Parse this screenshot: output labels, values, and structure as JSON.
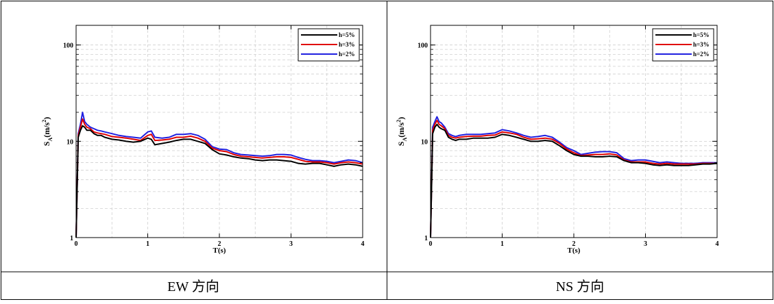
{
  "chart_data": [
    {
      "type": "line",
      "caption": "EW 方向",
      "xlabel": "T(s)",
      "ylabel": "S_A(m/s^2)",
      "ylabel_main": "S",
      "ylabel_sub": "A",
      "ylabel_unit": "(m/s",
      "ylabel_sup": "2",
      "ylabel_close": ")",
      "xlim": [
        0,
        4
      ],
      "ylim": [
        1,
        160
      ],
      "yscale": "log",
      "grid": true,
      "legend_position": "top-right",
      "x_ticks": [
        0,
        1,
        2,
        3,
        4
      ],
      "x_tick_labels": [
        "0",
        "1",
        "2",
        "3",
        "4"
      ],
      "y_ticks": [
        1,
        10,
        100
      ],
      "y_tick_labels": [
        "1",
        "10",
        "100"
      ],
      "series": [
        {
          "name": "h=5%",
          "color": "#000000",
          "x": [
            0,
            0.03,
            0.06,
            0.09,
            0.12,
            0.15,
            0.2,
            0.25,
            0.3,
            0.35,
            0.4,
            0.5,
            0.6,
            0.7,
            0.8,
            0.9,
            1.0,
            1.05,
            1.1,
            1.2,
            1.3,
            1.4,
            1.5,
            1.6,
            1.7,
            1.8,
            1.9,
            2.0,
            2.1,
            2.2,
            2.3,
            2.4,
            2.5,
            2.6,
            2.7,
            2.8,
            2.9,
            3.0,
            3.1,
            3.2,
            3.3,
            3.4,
            3.5,
            3.6,
            3.7,
            3.8,
            3.9,
            4.0
          ],
          "y": [
            1.0,
            11.0,
            13.0,
            14.5,
            14.0,
            13.0,
            13.0,
            12.0,
            11.5,
            11.5,
            11.0,
            10.5,
            10.3,
            10.0,
            9.8,
            10.0,
            10.8,
            10.5,
            9.2,
            9.5,
            9.8,
            10.2,
            10.5,
            10.5,
            10.0,
            9.5,
            8.2,
            7.4,
            7.2,
            6.9,
            6.7,
            6.6,
            6.4,
            6.3,
            6.4,
            6.4,
            6.3,
            6.2,
            5.9,
            5.8,
            5.9,
            5.9,
            5.7,
            5.5,
            5.7,
            5.8,
            5.7,
            5.5
          ]
        },
        {
          "name": "h=3%",
          "color": "#e00000",
          "x": [
            0,
            0.03,
            0.06,
            0.09,
            0.12,
            0.15,
            0.2,
            0.25,
            0.3,
            0.35,
            0.4,
            0.5,
            0.6,
            0.7,
            0.8,
            0.9,
            1.0,
            1.05,
            1.1,
            1.2,
            1.3,
            1.4,
            1.5,
            1.6,
            1.7,
            1.8,
            1.9,
            2.0,
            2.1,
            2.2,
            2.3,
            2.4,
            2.5,
            2.6,
            2.7,
            2.8,
            2.9,
            3.0,
            3.1,
            3.2,
            3.3,
            3.4,
            3.5,
            3.6,
            3.7,
            3.8,
            3.9,
            4.0
          ],
          "y": [
            1.0,
            11.5,
            14.0,
            17.0,
            15.0,
            14.0,
            13.5,
            12.5,
            12.2,
            12.0,
            11.8,
            11.2,
            11.0,
            10.8,
            10.5,
            10.2,
            11.5,
            11.8,
            10.2,
            10.3,
            10.5,
            11.0,
            11.0,
            11.3,
            10.8,
            10.0,
            8.5,
            8.0,
            7.8,
            7.3,
            7.0,
            6.9,
            6.8,
            6.7,
            6.8,
            6.9,
            6.9,
            6.8,
            6.5,
            6.2,
            6.1,
            6.1,
            6.0,
            5.8,
            6.0,
            6.1,
            6.0,
            5.8
          ]
        },
        {
          "name": "h=2%",
          "color": "#1f1fe0",
          "x": [
            0,
            0.03,
            0.06,
            0.09,
            0.12,
            0.15,
            0.2,
            0.25,
            0.3,
            0.35,
            0.4,
            0.5,
            0.6,
            0.7,
            0.8,
            0.9,
            1.0,
            1.05,
            1.1,
            1.2,
            1.3,
            1.4,
            1.5,
            1.6,
            1.7,
            1.8,
            1.9,
            2.0,
            2.1,
            2.2,
            2.3,
            2.4,
            2.5,
            2.6,
            2.7,
            2.8,
            2.9,
            3.0,
            3.1,
            3.2,
            3.3,
            3.4,
            3.5,
            3.6,
            3.7,
            3.8,
            3.9,
            4.0
          ],
          "y": [
            1.0,
            12.0,
            15.0,
            20.0,
            16.0,
            15.0,
            14.0,
            13.5,
            13.0,
            12.8,
            12.5,
            12.0,
            11.5,
            11.2,
            11.0,
            10.8,
            12.5,
            12.8,
            11.0,
            10.8,
            11.0,
            11.8,
            11.8,
            12.0,
            11.5,
            10.5,
            8.8,
            8.3,
            8.2,
            7.6,
            7.3,
            7.2,
            7.1,
            7.0,
            7.1,
            7.3,
            7.3,
            7.2,
            6.8,
            6.5,
            6.3,
            6.3,
            6.2,
            6.0,
            6.2,
            6.4,
            6.3,
            6.0
          ]
        }
      ]
    },
    {
      "type": "line",
      "caption": "NS 方向",
      "xlabel": "T(s)",
      "ylabel": "S_A(m/s^2)",
      "ylabel_main": "S",
      "ylabel_sub": "A",
      "ylabel_unit": "(m/s",
      "ylabel_sup": "2",
      "ylabel_close": ")",
      "xlim": [
        0,
        4
      ],
      "ylim": [
        1,
        160
      ],
      "yscale": "log",
      "grid": true,
      "legend_position": "top-right",
      "x_ticks": [
        0,
        1,
        2,
        3,
        4
      ],
      "x_tick_labels": [
        "0",
        "1",
        "2",
        "3",
        "4"
      ],
      "y_ticks": [
        1,
        10,
        100
      ],
      "y_tick_labels": [
        "1",
        "10",
        "100"
      ],
      "series": [
        {
          "name": "h=5%",
          "color": "#000000",
          "x": [
            0,
            0.03,
            0.06,
            0.09,
            0.12,
            0.15,
            0.2,
            0.25,
            0.3,
            0.35,
            0.4,
            0.5,
            0.6,
            0.7,
            0.8,
            0.9,
            1.0,
            1.1,
            1.2,
            1.3,
            1.4,
            1.5,
            1.6,
            1.7,
            1.8,
            1.9,
            2.0,
            2.1,
            2.2,
            2.3,
            2.4,
            2.5,
            2.6,
            2.7,
            2.8,
            2.9,
            3.0,
            3.1,
            3.2,
            3.3,
            3.4,
            3.5,
            3.6,
            3.7,
            3.8,
            3.9,
            4.0
          ],
          "y": [
            1.0,
            12.0,
            14.0,
            15.0,
            14.0,
            13.5,
            13.0,
            11.0,
            10.5,
            10.2,
            10.5,
            10.5,
            10.8,
            10.8,
            10.8,
            11.0,
            11.8,
            11.5,
            11.0,
            10.5,
            10.0,
            10.0,
            10.2,
            10.0,
            9.0,
            8.0,
            7.3,
            7.0,
            7.0,
            6.9,
            6.9,
            7.0,
            6.9,
            6.3,
            6.0,
            6.0,
            5.9,
            5.7,
            5.6,
            5.7,
            5.6,
            5.6,
            5.6,
            5.7,
            5.8,
            5.8,
            5.9
          ]
        },
        {
          "name": "h=3%",
          "color": "#e00000",
          "x": [
            0,
            0.03,
            0.06,
            0.09,
            0.12,
            0.15,
            0.2,
            0.25,
            0.3,
            0.35,
            0.4,
            0.5,
            0.6,
            0.7,
            0.8,
            0.9,
            1.0,
            1.1,
            1.2,
            1.3,
            1.4,
            1.5,
            1.6,
            1.7,
            1.8,
            1.9,
            2.0,
            2.1,
            2.2,
            2.3,
            2.4,
            2.5,
            2.6,
            2.7,
            2.8,
            2.9,
            3.0,
            3.1,
            3.2,
            3.3,
            3.4,
            3.5,
            3.6,
            3.7,
            3.8,
            3.9,
            4.0
          ],
          "y": [
            1.0,
            13.0,
            15.0,
            16.5,
            15.0,
            14.5,
            13.5,
            11.5,
            11.0,
            10.8,
            11.0,
            11.2,
            11.3,
            11.3,
            11.5,
            11.6,
            12.5,
            12.2,
            11.8,
            11.0,
            10.5,
            10.6,
            10.8,
            10.5,
            9.5,
            8.3,
            7.6,
            7.1,
            7.2,
            7.3,
            7.3,
            7.4,
            7.2,
            6.4,
            6.1,
            6.1,
            6.1,
            5.9,
            5.8,
            5.9,
            5.8,
            5.8,
            5.8,
            5.8,
            5.9,
            5.9,
            5.9
          ]
        },
        {
          "name": "h=2%",
          "color": "#1f1fe0",
          "x": [
            0,
            0.03,
            0.06,
            0.09,
            0.12,
            0.15,
            0.2,
            0.25,
            0.3,
            0.35,
            0.4,
            0.5,
            0.6,
            0.7,
            0.8,
            0.9,
            1.0,
            1.1,
            1.2,
            1.3,
            1.4,
            1.5,
            1.6,
            1.7,
            1.8,
            1.9,
            2.0,
            2.1,
            2.2,
            2.3,
            2.4,
            2.5,
            2.6,
            2.7,
            2.8,
            2.9,
            3.0,
            3.1,
            3.2,
            3.3,
            3.4,
            3.5,
            3.6,
            3.7,
            3.8,
            3.9,
            4.0
          ],
          "y": [
            1.0,
            14.0,
            16.0,
            18.0,
            16.0,
            15.5,
            14.0,
            12.0,
            11.5,
            11.2,
            11.5,
            11.8,
            11.8,
            11.8,
            12.0,
            12.2,
            13.2,
            12.8,
            12.2,
            11.5,
            11.0,
            11.2,
            11.5,
            11.0,
            9.8,
            8.6,
            8.0,
            7.3,
            7.5,
            7.7,
            7.8,
            7.8,
            7.6,
            6.6,
            6.3,
            6.4,
            6.4,
            6.2,
            6.0,
            6.1,
            6.0,
            5.9,
            5.9,
            5.9,
            6.0,
            6.0,
            6.0
          ]
        }
      ]
    }
  ]
}
